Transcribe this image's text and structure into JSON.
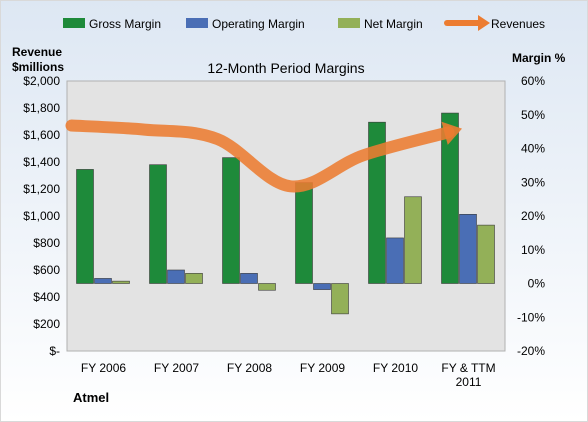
{
  "chart_data": {
    "type": "bar",
    "title": "12-Month Period Margins",
    "company": "Atmel",
    "left_axis": {
      "title_line1": "Revenue",
      "title_line2": "$millions",
      "range": [
        0,
        2000
      ],
      "ticks": [
        "$2,000",
        "$1,800",
        "$1,600",
        "$1,400",
        "$1,200",
        "$1,000",
        "$800",
        "$600",
        "$400",
        "$200",
        "$-"
      ]
    },
    "right_axis": {
      "title": "Margin %",
      "range": [
        -20,
        60
      ],
      "ticks": [
        "60%",
        "50%",
        "40%",
        "30%",
        "20%",
        "10%",
        "0%",
        "-10%",
        "-20%"
      ]
    },
    "categories": [
      "FY 2006",
      "FY 2007",
      "FY 2008",
      "FY 2009",
      "FY 2010",
      "FY & TTM 2011"
    ],
    "category_labels": [
      [
        "FY 2006"
      ],
      [
        "FY 2007"
      ],
      [
        "FY 2008"
      ],
      [
        "FY 2009"
      ],
      [
        "FY 2010"
      ],
      [
        "FY & TTM",
        "2011"
      ]
    ],
    "series": [
      {
        "name": "Gross Margin",
        "type": "bar",
        "axis": "right",
        "color": "#1e8a3a",
        "values": [
          33.8,
          35.2,
          37.3,
          29.9,
          47.8,
          50.5
        ]
      },
      {
        "name": "Operating Margin",
        "type": "bar",
        "axis": "right",
        "color": "#4a6eb5",
        "values": [
          1.5,
          4.0,
          3.0,
          -1.8,
          13.5,
          20.5
        ]
      },
      {
        "name": "Net Margin",
        "type": "bar",
        "axis": "right",
        "color": "#93b058",
        "values": [
          0.7,
          3.0,
          -2.0,
          -9.0,
          25.7,
          17.3
        ]
      },
      {
        "name": "Revenues",
        "type": "line",
        "axis": "left",
        "color": "#ec7c31",
        "values": [
          1670,
          1640,
          1570,
          1220,
          1450,
          1620
        ]
      }
    ],
    "legend_position": "top",
    "grid": false
  }
}
